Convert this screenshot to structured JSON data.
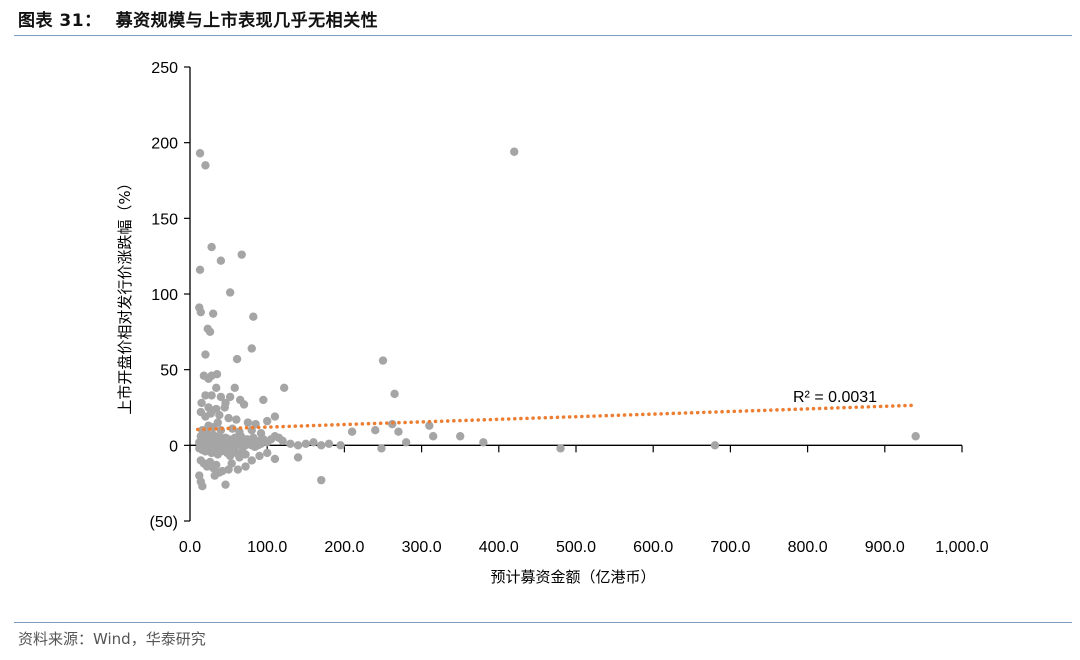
{
  "figure": {
    "label": "图表 31：",
    "title": "募资规模与上市表现几乎无相关性",
    "source": "资料来源：Wind，华泰研究"
  },
  "chart_data": {
    "type": "scatter",
    "xlabel": "预计募资金额（亿港币）",
    "ylabel": "上市开盘价相对发行价涨跌幅（%）",
    "xlim": [
      0,
      1000
    ],
    "ylim": [
      -50,
      250
    ],
    "x_ticks": [
      0,
      100,
      200,
      300,
      400,
      500,
      600,
      700,
      800,
      900,
      1000
    ],
    "x_tick_labels": [
      "0.0",
      "100.0",
      "200.0",
      "300.0",
      "400.0",
      "500.0",
      "600.0",
      "700.0",
      "800.0",
      "900.0",
      "1,000.0"
    ],
    "y_ticks": [
      -50,
      0,
      50,
      100,
      150,
      200,
      250
    ],
    "y_tick_labels": [
      "(50)",
      "0",
      "50",
      "100",
      "150",
      "200",
      "250"
    ],
    "negative_tick_color": "#c00000",
    "point_color": "#a5a5a5",
    "trendline_color": "#ed7d31",
    "trendline": {
      "x": [
        10,
        940
      ],
      "y": [
        10.5,
        26.5
      ]
    },
    "r_squared_label": "R² = 0.0031",
    "points": [
      [
        13,
        193
      ],
      [
        20,
        185
      ],
      [
        28,
        131
      ],
      [
        40,
        122
      ],
      [
        13,
        116
      ],
      [
        67,
        126
      ],
      [
        52,
        101
      ],
      [
        12,
        91
      ],
      [
        14,
        88
      ],
      [
        30,
        87
      ],
      [
        23,
        77
      ],
      [
        26,
        75
      ],
      [
        82,
        85
      ],
      [
        80,
        64
      ],
      [
        20,
        60
      ],
      [
        61,
        57
      ],
      [
        35,
        47
      ],
      [
        28,
        46
      ],
      [
        18,
        46
      ],
      [
        24,
        44
      ],
      [
        34,
        38
      ],
      [
        58,
        38
      ],
      [
        20,
        33
      ],
      [
        28,
        33
      ],
      [
        40,
        32
      ],
      [
        52,
        32
      ],
      [
        46,
        28
      ],
      [
        65,
        30
      ],
      [
        15,
        28
      ],
      [
        24,
        25
      ],
      [
        34,
        24
      ],
      [
        45,
        25
      ],
      [
        70,
        27
      ],
      [
        14,
        22
      ],
      [
        20,
        19
      ],
      [
        27,
        21
      ],
      [
        38,
        20
      ],
      [
        50,
        18
      ],
      [
        60,
        17
      ],
      [
        75,
        15
      ],
      [
        85,
        14
      ],
      [
        100,
        16
      ],
      [
        110,
        19
      ],
      [
        122,
        38
      ],
      [
        95,
        30
      ],
      [
        24,
        13
      ],
      [
        30,
        12
      ],
      [
        36,
        15
      ],
      [
        16,
        10
      ],
      [
        40,
        10
      ],
      [
        55,
        11
      ],
      [
        64,
        9
      ],
      [
        80,
        10
      ],
      [
        92,
        8
      ],
      [
        14,
        6
      ],
      [
        18,
        5
      ],
      [
        22,
        8
      ],
      [
        26,
        5
      ],
      [
        30,
        7
      ],
      [
        34,
        4
      ],
      [
        38,
        6
      ],
      [
        42,
        3
      ],
      [
        46,
        5
      ],
      [
        50,
        4
      ],
      [
        54,
        2
      ],
      [
        58,
        5
      ],
      [
        62,
        3
      ],
      [
        66,
        6
      ],
      [
        70,
        2
      ],
      [
        74,
        4
      ],
      [
        78,
        3
      ],
      [
        82,
        5
      ],
      [
        86,
        2
      ],
      [
        90,
        3
      ],
      [
        95,
        4
      ],
      [
        100,
        2
      ],
      [
        105,
        4
      ],
      [
        110,
        6
      ],
      [
        115,
        5
      ],
      [
        120,
        3
      ],
      [
        130,
        1
      ],
      [
        140,
        0
      ],
      [
        150,
        1
      ],
      [
        160,
        2
      ],
      [
        170,
        0
      ],
      [
        180,
        1
      ],
      [
        12,
        2
      ],
      [
        16,
        1
      ],
      [
        20,
        0
      ],
      [
        24,
        2
      ],
      [
        28,
        1
      ],
      [
        32,
        0
      ],
      [
        36,
        1
      ],
      [
        40,
        -1
      ],
      [
        44,
        0
      ],
      [
        48,
        1
      ],
      [
        52,
        0
      ],
      [
        56,
        -1
      ],
      [
        60,
        0
      ],
      [
        64,
        1
      ],
      [
        68,
        -1
      ],
      [
        72,
        0
      ],
      [
        76,
        1
      ],
      [
        80,
        0
      ],
      [
        84,
        -1
      ],
      [
        88,
        0
      ],
      [
        92,
        1
      ],
      [
        12,
        -2
      ],
      [
        16,
        -3
      ],
      [
        20,
        -4
      ],
      [
        24,
        -2
      ],
      [
        28,
        -5
      ],
      [
        32,
        -3
      ],
      [
        36,
        -6
      ],
      [
        40,
        -4
      ],
      [
        44,
        -2
      ],
      [
        48,
        -5
      ],
      [
        52,
        -7
      ],
      [
        56,
        -3
      ],
      [
        60,
        -5
      ],
      [
        64,
        -8
      ],
      [
        68,
        -4
      ],
      [
        72,
        -6
      ],
      [
        80,
        -10
      ],
      [
        90,
        -7
      ],
      [
        100,
        -5
      ],
      [
        110,
        -9
      ],
      [
        140,
        -8
      ],
      [
        14,
        -10
      ],
      [
        18,
        -12
      ],
      [
        22,
        -14
      ],
      [
        26,
        -11
      ],
      [
        30,
        -15
      ],
      [
        34,
        -13
      ],
      [
        38,
        -18
      ],
      [
        42,
        -17
      ],
      [
        46,
        -26
      ],
      [
        54,
        -12
      ],
      [
        62,
        -16
      ],
      [
        72,
        -14
      ],
      [
        12,
        -20
      ],
      [
        14,
        -24
      ],
      [
        16,
        -27
      ],
      [
        32,
        -20
      ],
      [
        50,
        -16
      ],
      [
        170,
        -23
      ],
      [
        195,
        0
      ],
      [
        210,
        9
      ],
      [
        240,
        10
      ],
      [
        248,
        -2
      ],
      [
        250,
        56
      ],
      [
        262,
        14
      ],
      [
        265,
        34
      ],
      [
        270,
        9
      ],
      [
        280,
        2
      ],
      [
        310,
        13
      ],
      [
        315,
        6
      ],
      [
        350,
        6
      ],
      [
        380,
        2
      ],
      [
        420,
        194
      ],
      [
        480,
        -2
      ],
      [
        680,
        0
      ],
      [
        940,
        6
      ]
    ]
  }
}
